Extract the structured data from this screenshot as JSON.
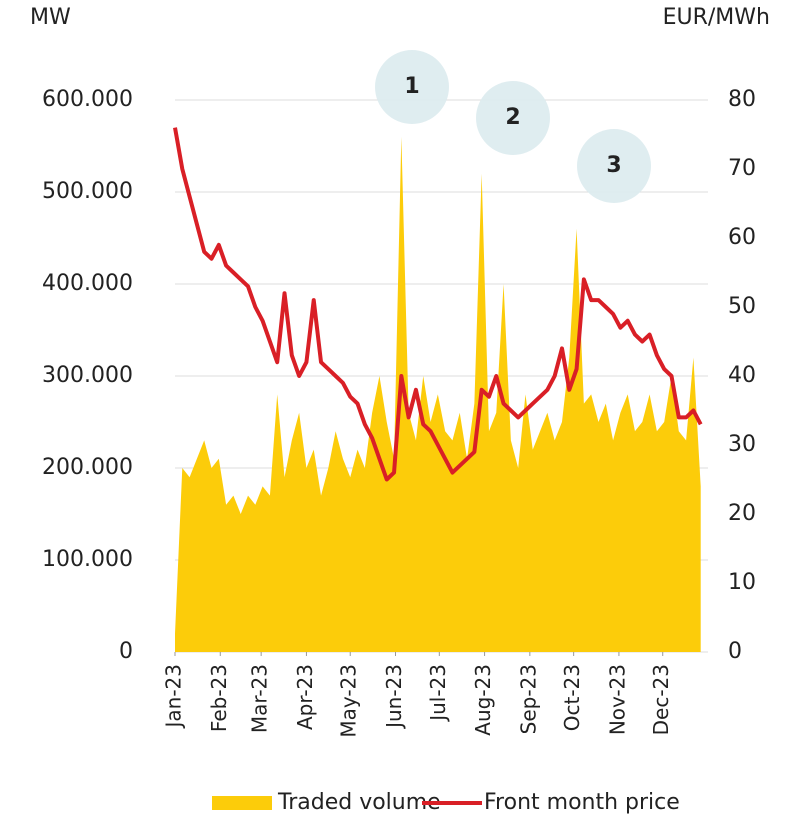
{
  "chart_data": {
    "type": "area_line",
    "y_label": "MW",
    "y2_label": "EUR/MWh",
    "annotations": [
      "1",
      "2",
      "3"
    ],
    "xlim": [
      0,
      365
    ],
    "xticks": [
      {
        "value": 0,
        "label": "Jan-23"
      },
      {
        "value": 31,
        "label": "Feb-23"
      },
      {
        "value": 59,
        "label": "Mar-23"
      },
      {
        "value": 90,
        "label": "Apr-23"
      },
      {
        "value": 120,
        "label": "May-23"
      },
      {
        "value": 151,
        "label": "Jun-23"
      },
      {
        "value": 181,
        "label": "Jul-23"
      },
      {
        "value": 212,
        "label": "Aug-23"
      },
      {
        "value": 243,
        "label": "Sep-23"
      },
      {
        "value": 273,
        "label": "Oct-23"
      },
      {
        "value": 304,
        "label": "Nov-23"
      },
      {
        "value": 334,
        "label": "Dec-23"
      }
    ],
    "ylim": [
      0,
      600000
    ],
    "yticks": [
      0,
      {
        "value": 100000,
        "label": "100.000"
      },
      {
        "value": 200000,
        "label": "200.000"
      },
      {
        "value": 300000,
        "label": "300.000"
      },
      {
        "value": 400000,
        "label": "400.000"
      },
      {
        "value": 500000,
        "label": "500.000"
      },
      {
        "value": 600000,
        "label": "600.000"
      }
    ],
    "y2lim": [
      0,
      80
    ],
    "y2ticks": [
      0,
      10,
      20,
      30,
      40,
      50,
      60,
      70,
      80
    ],
    "grid": true,
    "x": [
      0,
      5,
      10,
      15,
      20,
      25,
      30,
      35,
      40,
      45,
      50,
      55,
      60,
      65,
      70,
      75,
      80,
      85,
      90,
      95,
      100,
      105,
      110,
      115,
      120,
      125,
      130,
      135,
      140,
      145,
      150,
      155,
      160,
      165,
      170,
      175,
      180,
      185,
      190,
      195,
      200,
      205,
      210,
      215,
      220,
      225,
      230,
      235,
      240,
      245,
      250,
      255,
      260,
      265,
      270,
      275,
      280,
      285,
      290,
      295,
      300,
      305,
      310,
      315,
      320,
      325,
      330,
      335,
      340,
      345,
      350,
      355,
      360
    ],
    "series": [
      {
        "name": "Traded volume",
        "color": "#fccc0a",
        "kind": "area",
        "values": [
          20000,
          200000,
          190000,
          210000,
          230000,
          200000,
          210000,
          160000,
          170000,
          150000,
          170000,
          160000,
          180000,
          170000,
          280000,
          190000,
          230000,
          260000,
          200000,
          220000,
          170000,
          200000,
          240000,
          210000,
          190000,
          220000,
          200000,
          260000,
          300000,
          250000,
          210000,
          560000,
          260000,
          230000,
          300000,
          250000,
          280000,
          240000,
          230000,
          260000,
          210000,
          270000,
          520000,
          240000,
          260000,
          400000,
          230000,
          200000,
          280000,
          220000,
          240000,
          260000,
          230000,
          250000,
          320000,
          460000,
          270000,
          280000,
          250000,
          270000,
          230000,
          260000,
          280000,
          240000,
          250000,
          280000,
          240000,
          250000,
          300000,
          240000,
          230000,
          320000,
          180000
        ]
      },
      {
        "name": "Front month price",
        "color": "#d91f26",
        "kind": "line",
        "axis": "y2",
        "values": [
          76,
          70,
          66,
          62,
          58,
          57,
          59,
          56,
          55,
          54,
          53,
          50,
          48,
          45,
          42,
          52,
          43,
          40,
          42,
          51,
          42,
          41,
          40,
          39,
          37,
          36,
          33,
          31,
          28,
          25,
          26,
          40,
          34,
          38,
          33,
          32,
          30,
          28,
          26,
          27,
          28,
          29,
          38,
          37,
          40,
          36,
          35,
          34,
          35,
          36,
          37,
          38,
          40,
          44,
          38,
          41,
          54,
          51,
          51,
          50,
          49,
          47,
          48,
          46,
          45,
          46,
          43,
          41,
          40,
          34,
          34,
          35,
          33
        ]
      }
    ]
  }
}
